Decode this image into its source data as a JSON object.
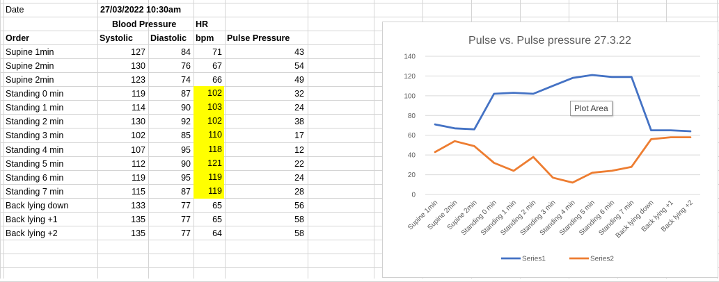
{
  "sheet": {
    "date_label": "Date",
    "date_value": "27/03/2022 10:30am",
    "header_bp": "Blood Pressure",
    "header_hr": "HR",
    "col_order": "Order",
    "col_systolic": "Systolic",
    "col_diastolic": "Diastolic",
    "col_bpm": "bpm",
    "col_pulse_pressure": "Pulse Pressure",
    "highlight_color": "#ffff00",
    "rows": [
      {
        "order": "Supine 1min",
        "systolic": "127",
        "diastolic": "84",
        "bpm": "71",
        "pp": "43",
        "highlight": false
      },
      {
        "order": "Supine 2min",
        "systolic": "130",
        "diastolic": "76",
        "bpm": "67",
        "pp": "54",
        "highlight": false
      },
      {
        "order": "Supine 2min",
        "systolic": "123",
        "diastolic": "74",
        "bpm": "66",
        "pp": "49",
        "highlight": false
      },
      {
        "order": "Standing 0 min",
        "systolic": "119",
        "diastolic": "87",
        "bpm": "102",
        "pp": "32",
        "highlight": true
      },
      {
        "order": "Standing 1 min",
        "systolic": "114",
        "diastolic": "90",
        "bpm": "103",
        "pp": "24",
        "highlight": true
      },
      {
        "order": "Standing 2 min",
        "systolic": "130",
        "diastolic": "92",
        "bpm": "102",
        "pp": "38",
        "highlight": true
      },
      {
        "order": "Standing 3 min",
        "systolic": "102",
        "diastolic": "85",
        "bpm": "110",
        "pp": "17",
        "highlight": true
      },
      {
        "order": "Standing 4 min",
        "systolic": "107",
        "diastolic": "95",
        "bpm": "118",
        "pp": "12",
        "highlight": true
      },
      {
        "order": "Standing 5 min",
        "systolic": "112",
        "diastolic": "90",
        "bpm": "121",
        "pp": "22",
        "highlight": true
      },
      {
        "order": "Standing 6 min",
        "systolic": "119",
        "diastolic": "95",
        "bpm": "119",
        "pp": "24",
        "highlight": true
      },
      {
        "order": "Standing 7 min",
        "systolic": "115",
        "diastolic": "87",
        "bpm": "119",
        "pp": "28",
        "highlight": true
      },
      {
        "order": "Back lying down",
        "systolic": "133",
        "diastolic": "77",
        "bpm": "65",
        "pp": "56",
        "highlight": false
      },
      {
        "order": "Back lying +1",
        "systolic": "135",
        "diastolic": "77",
        "bpm": "65",
        "pp": "58",
        "highlight": false
      },
      {
        "order": "Back lying +2",
        "systolic": "135",
        "diastolic": "77",
        "bpm": "64",
        "pp": "58",
        "highlight": false
      }
    ]
  },
  "tooltip": {
    "text": "Plot Area"
  },
  "chart_data": {
    "type": "line",
    "title": "Pulse vs. Pulse pressure 27.3.22",
    "xlabel": "",
    "ylabel": "",
    "ylim": [
      0,
      140
    ],
    "yticks": [
      0,
      20,
      40,
      60,
      80,
      100,
      120,
      140
    ],
    "grid": true,
    "legend_position": "bottom",
    "categories": [
      "Supine 1min",
      "Supine 2min",
      "Supine 2min",
      "Standing 0 min",
      "Standing 1 min",
      "Standing 2 min",
      "Standing 3 min",
      "Standing 4 min",
      "Standing 5 min",
      "Standing 6 min",
      "Standing 7 min",
      "Back lying down",
      "Back lying +1",
      "Back lying +2"
    ],
    "series": [
      {
        "name": "Series1",
        "color": "#4472c4",
        "values": [
          71,
          67,
          66,
          102,
          103,
          102,
          110,
          118,
          121,
          119,
          119,
          65,
          65,
          64
        ]
      },
      {
        "name": "Series2",
        "color": "#ed7d31",
        "values": [
          43,
          54,
          49,
          32,
          24,
          38,
          17,
          12,
          22,
          24,
          28,
          56,
          58,
          58
        ]
      }
    ]
  }
}
